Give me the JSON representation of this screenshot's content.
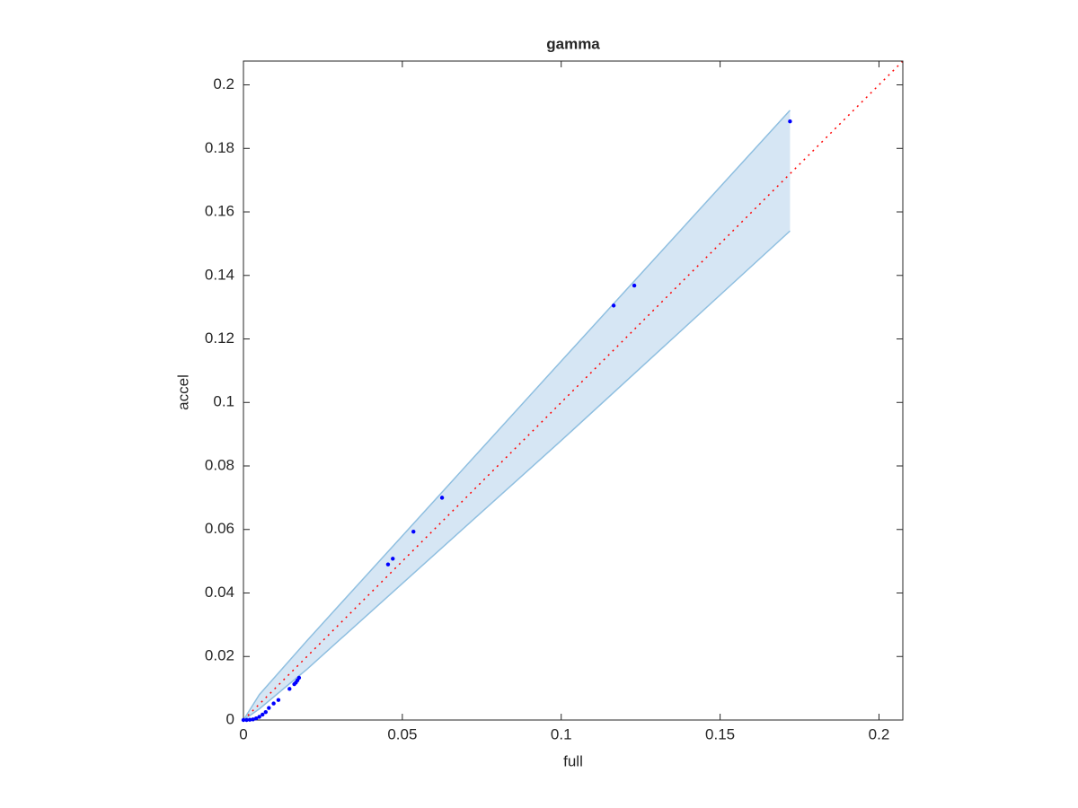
{
  "chart_data": {
    "type": "scatter",
    "title": "gamma",
    "x_label": "full",
    "y_label": "accel",
    "x": [
      0.172,
      0.123,
      0.1165,
      0.0625,
      0.0535,
      0.047,
      0.0455,
      0.0175,
      0.017,
      0.0165,
      0.016,
      0.0145,
      0.011,
      0.0095,
      0.008,
      0.007,
      0.006,
      0.005,
      0.004,
      0.003,
      0.002,
      0.001,
      0
    ],
    "y": [
      0.1885,
      0.1368,
      0.1305,
      0.07,
      0.0593,
      0.0508,
      0.049,
      0.0133,
      0.0125,
      0.0118,
      0.0113,
      0.0098,
      0.0063,
      0.0052,
      0.0038,
      0.0025,
      0.0017,
      0.001,
      0.0005,
      0.0002,
      0.0001,
      0,
      0
    ],
    "color": "#0000ff",
    "band": {
      "x": [
        0,
        0.005,
        0.02,
        0.05,
        0.1,
        0.172
      ],
      "upper": [
        0,
        0.008,
        0.025,
        0.058,
        0.113,
        0.192
      ],
      "lower": [
        0,
        0.0035,
        0.016,
        0.043,
        0.088,
        0.154
      ],
      "fill": "#d6e6f4",
      "edge": "#8fbfe0"
    },
    "reference_line": {
      "x": [
        0,
        0.2075
      ],
      "y": [
        0,
        0.2075
      ],
      "color": "#ff0000"
    },
    "xlim": [
      0,
      0.2075
    ],
    "ylim": [
      0,
      0.2075
    ],
    "xticks": [
      0,
      0.05,
      0.1,
      0.15,
      0.2
    ],
    "yticks": [
      0,
      0.02,
      0.04,
      0.06,
      0.08,
      0.1,
      0.12,
      0.14,
      0.16,
      0.18,
      0.2
    ],
    "grid": false
  }
}
